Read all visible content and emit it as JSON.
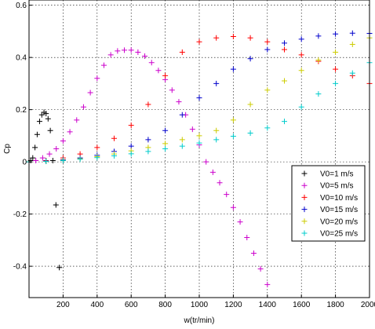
{
  "chart_data": {
    "type": "scatter",
    "marker": "+",
    "xlabel": "w(tr/min)",
    "ylabel": "Cp",
    "xlim": [
      0,
      2000
    ],
    "ylim": [
      -0.52,
      0.62
    ],
    "xticks": [
      "200",
      "400",
      "600",
      "800",
      "1000",
      "1200",
      "1400",
      "1600",
      "1800",
      "2000"
    ],
    "yticks": [
      "-0.4",
      "-0.2",
      "0",
      "0.2",
      "0.4",
      "0.6"
    ],
    "grid": true,
    "legend_position": "lower-right",
    "series": [
      {
        "name": "V0=1 m/s",
        "color": "#000000",
        "x": [
          10,
          22,
          35,
          48,
          62,
          75,
          88,
          100,
          112,
          125,
          140,
          158,
          178
        ],
        "y": [
          0.005,
          0.015,
          0.055,
          0.105,
          0.155,
          0.18,
          0.19,
          0.185,
          0.165,
          0.12,
          0.005,
          -0.165,
          -0.405
        ]
      },
      {
        "name": "V0=5 m/s",
        "color": "#cc00cc",
        "x": [
          0,
          40,
          80,
          120,
          160,
          200,
          240,
          280,
          320,
          360,
          400,
          440,
          480,
          520,
          560,
          600,
          640,
          680,
          720,
          760,
          800,
          840,
          880,
          920,
          960,
          1000,
          1040,
          1080,
          1120,
          1160,
          1200,
          1240,
          1280,
          1320,
          1360,
          1400
        ],
        "y": [
          0.0,
          0.005,
          0.015,
          0.03,
          0.05,
          0.08,
          0.115,
          0.16,
          0.21,
          0.265,
          0.32,
          0.37,
          0.41,
          0.425,
          0.428,
          0.428,
          0.42,
          0.405,
          0.38,
          0.35,
          0.315,
          0.275,
          0.23,
          0.18,
          0.125,
          0.065,
          0.0,
          -0.04,
          -0.08,
          -0.125,
          -0.175,
          -0.23,
          -0.29,
          -0.35,
          -0.41,
          -0.47
        ]
      },
      {
        "name": "V0=10 m/s",
        "color": "#ff0000",
        "x": [
          0,
          100,
          200,
          300,
          400,
          500,
          600,
          700,
          800,
          900,
          1000,
          1100,
          1200,
          1300,
          1400,
          1500,
          1600,
          1700,
          1800,
          1900,
          2000
        ],
        "y": [
          0.0,
          0.005,
          0.015,
          0.03,
          0.055,
          0.09,
          0.14,
          0.22,
          0.33,
          0.42,
          0.46,
          0.475,
          0.48,
          0.475,
          0.46,
          0.43,
          0.41,
          0.385,
          0.355,
          0.33,
          0.3
        ]
      },
      {
        "name": "V0=15 m/s",
        "color": "#0000cc",
        "x": [
          0,
          100,
          200,
          300,
          400,
          500,
          600,
          700,
          800,
          900,
          1000,
          1100,
          1200,
          1300,
          1400,
          1500,
          1600,
          1700,
          1800,
          1900,
          2000
        ],
        "y": [
          0.0,
          0.003,
          0.008,
          0.015,
          0.025,
          0.04,
          0.06,
          0.085,
          0.12,
          0.18,
          0.245,
          0.3,
          0.355,
          0.395,
          0.43,
          0.455,
          0.47,
          0.482,
          0.49,
          0.493,
          0.492
        ]
      },
      {
        "name": "V0=20 m/s",
        "color": "#cccc00",
        "x": [
          0,
          100,
          200,
          300,
          400,
          500,
          600,
          700,
          800,
          900,
          1000,
          1100,
          1200,
          1300,
          1400,
          1500,
          1600,
          1700,
          1800,
          1900,
          2000
        ],
        "y": [
          0.0,
          0.002,
          0.006,
          0.012,
          0.02,
          0.03,
          0.042,
          0.055,
          0.07,
          0.085,
          0.1,
          0.12,
          0.16,
          0.22,
          0.275,
          0.31,
          0.35,
          0.39,
          0.42,
          0.45,
          0.475
        ]
      },
      {
        "name": "V0=25 m/s",
        "color": "#00cccc",
        "x": [
          0,
          100,
          200,
          300,
          400,
          500,
          600,
          700,
          800,
          900,
          1000,
          1100,
          1200,
          1300,
          1400,
          1500,
          1600,
          1700,
          1800,
          1900,
          2000
        ],
        "y": [
          0.0,
          0.002,
          0.005,
          0.01,
          0.016,
          0.023,
          0.031,
          0.04,
          0.05,
          0.06,
          0.072,
          0.085,
          0.098,
          0.11,
          0.13,
          0.155,
          0.21,
          0.26,
          0.3,
          0.34,
          0.38
        ]
      }
    ]
  }
}
